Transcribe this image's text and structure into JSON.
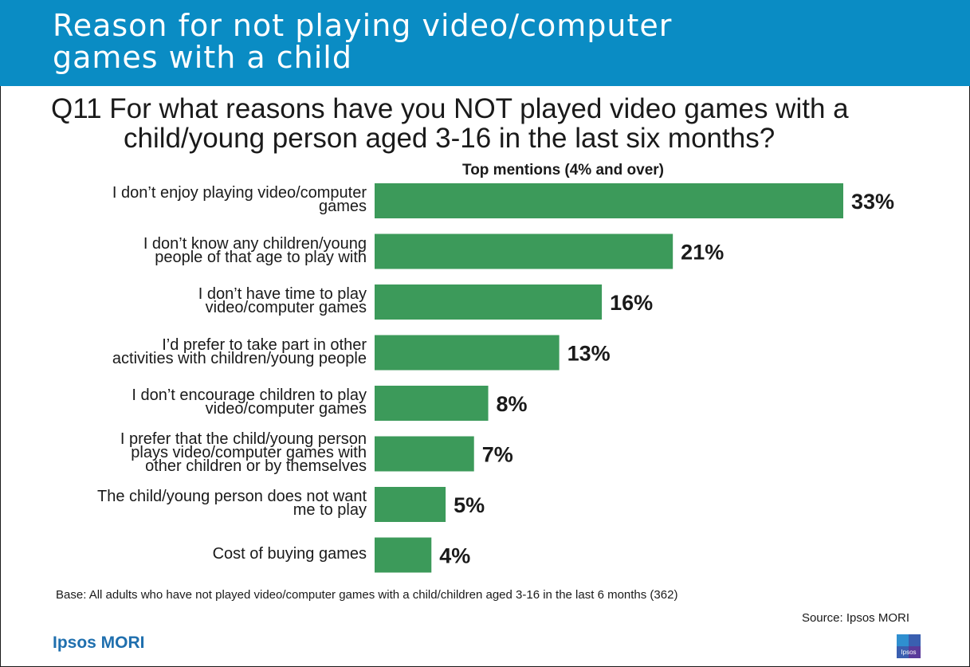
{
  "title": {
    "line1": "Reason for not playing video/computer",
    "line2": "games with a child"
  },
  "question": {
    "line1": "Q11  For what reasons have you NOT played video games with a",
    "line2": "child/young person aged 3-16 in the last six months?"
  },
  "chart_data": {
    "type": "bar",
    "orientation": "horizontal",
    "title": "Top mentions (4% and over)",
    "categories": [
      "I don’t enjoy playing video/computer\ngames",
      "I don’t know any children/young\npeople of that age to play with",
      "I don’t have time to play\nvideo/computer games",
      "I’d prefer to take part in other\nactivities with children/young people",
      "I don’t encourage children to play\nvideo/computer games",
      "I prefer that the child/young person\nplays video/computer games with\nother children or by themselves",
      "The child/young person does not want\nme to play",
      "Cost of buying games"
    ],
    "values": [
      33,
      21,
      16,
      13,
      8,
      7,
      5,
      4
    ],
    "value_labels": [
      "33%",
      "21%",
      "16%",
      "13%",
      "8%",
      "7%",
      "5%",
      "4%"
    ],
    "xlim": [
      0,
      33
    ],
    "unit": "%",
    "bar_color": "#3c9a5a",
    "grid": false,
    "legend": "none"
  },
  "footer": {
    "base": "Base: All adults who have not played video/computer games with a child/children aged 3-16 in the last 6 months (362)",
    "source": "Source: Ipsos MORI",
    "brand": "Ipsos MORI",
    "logo_text": "Ipsos"
  },
  "colors": {
    "title_bar": "#0a8cc4",
    "brand_text": "#1f6fae"
  }
}
